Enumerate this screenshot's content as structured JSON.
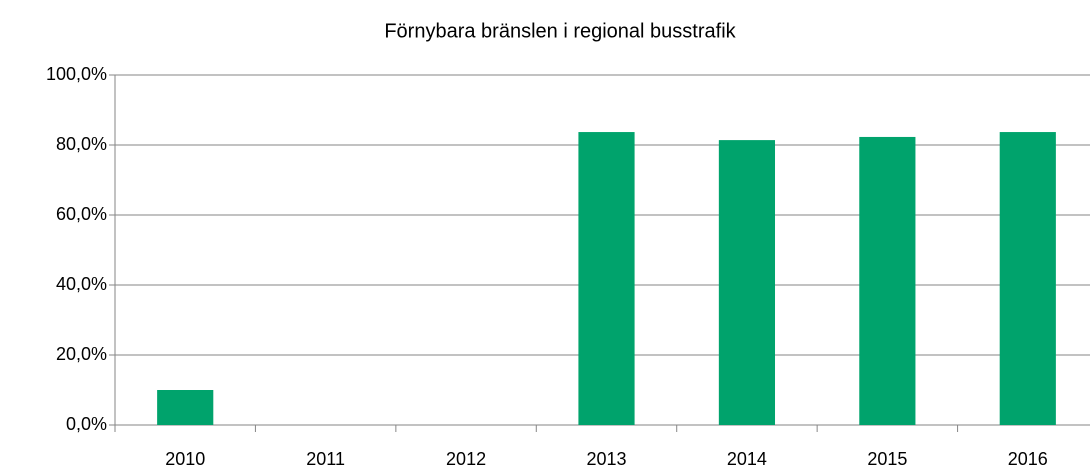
{
  "chart_data": {
    "type": "bar",
    "title": "Förnybara bränslen i regional busstrafik",
    "categories": [
      "2010",
      "2011",
      "2012",
      "2013",
      "2014",
      "2015",
      "2016"
    ],
    "values": [
      10,
      null,
      null,
      83.7,
      81.4,
      82.3,
      83.7
    ],
    "color": "#00a36c",
    "ylim": [
      0,
      100
    ],
    "yticks": [
      {
        "value": 0,
        "label": "0,0%"
      },
      {
        "value": 20,
        "label": "20,0%"
      },
      {
        "value": 40,
        "label": "40,0%"
      },
      {
        "value": 60,
        "label": "60,0%"
      },
      {
        "value": 80,
        "label": "80,0%"
      },
      {
        "value": 100,
        "label": "100,0%"
      }
    ],
    "grid": true
  }
}
